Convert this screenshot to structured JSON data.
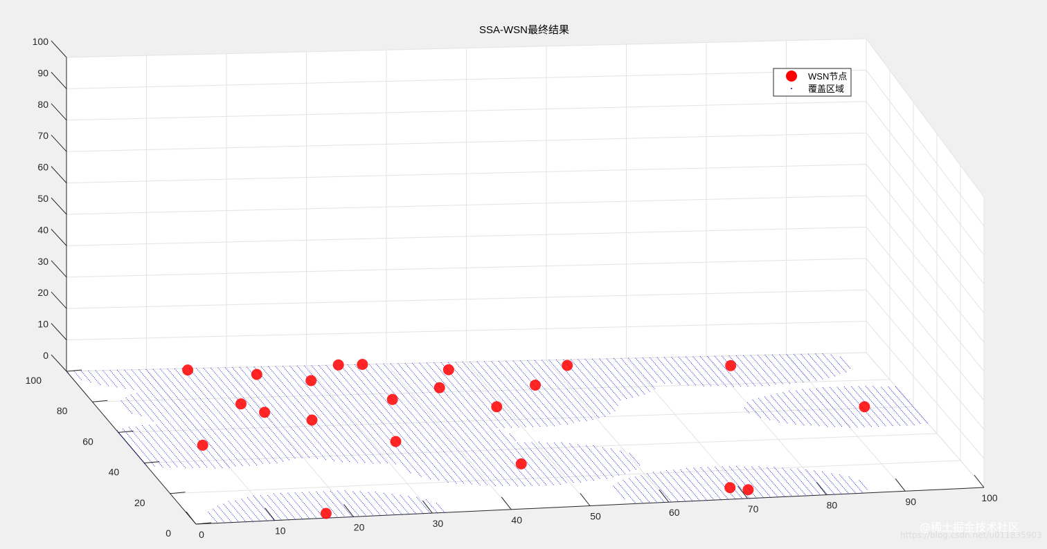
{
  "chart_data": {
    "type": "scatter",
    "title": "SSA-WSN最终结果",
    "xlabel": "",
    "ylabel": "",
    "zlabel": "",
    "xlim": [
      0,
      100
    ],
    "ylim": [
      0,
      100
    ],
    "zlim": [
      0,
      100
    ],
    "x_ticks": [
      "0",
      "10",
      "20",
      "30",
      "40",
      "50",
      "60",
      "70",
      "80",
      "90",
      "100"
    ],
    "y_ticks": [
      "0",
      "20",
      "40",
      "60",
      "80",
      "100"
    ],
    "z_ticks": [
      "0",
      "10",
      "20",
      "30",
      "40",
      "50",
      "60",
      "70",
      "80",
      "90",
      "100"
    ],
    "grid": true,
    "legend": {
      "position": "top-right",
      "entries": [
        "WSN节点",
        "覆盖区域"
      ]
    },
    "coverage_radius": 15,
    "series": [
      {
        "name": "WSN节点",
        "marker": "filled-circle",
        "color": "#ff0000",
        "points": [
          {
            "x": 17,
            "y": 3,
            "z": 0
          },
          {
            "x": 71,
            "y": 6,
            "z": 0
          },
          {
            "x": 69,
            "y": 8,
            "z": 0
          },
          {
            "x": 46,
            "y": 30,
            "z": 0
          },
          {
            "x": 9,
            "y": 50,
            "z": 0
          },
          {
            "x": 33,
            "y": 48,
            "z": 0
          },
          {
            "x": 25,
            "y": 64,
            "z": 0
          },
          {
            "x": 20,
            "y": 70,
            "z": 0
          },
          {
            "x": 18,
            "y": 76,
            "z": 0
          },
          {
            "x": 49,
            "y": 69,
            "z": 0
          },
          {
            "x": 94,
            "y": 61,
            "z": 0
          },
          {
            "x": 37,
            "y": 76,
            "z": 0
          },
          {
            "x": 44,
            "y": 83,
            "z": 0
          },
          {
            "x": 56,
            "y": 83,
            "z": 0
          },
          {
            "x": 82,
            "y": 93,
            "z": 0
          },
          {
            "x": 29,
            "y": 90,
            "z": 0
          },
          {
            "x": 47,
            "y": 95,
            "z": 0
          },
          {
            "x": 62,
            "y": 96,
            "z": 0
          },
          {
            "x": 37,
            "y": 100,
            "z": 0
          },
          {
            "x": 23,
            "y": 95,
            "z": 0
          },
          {
            "x": 15,
            "y": 99,
            "z": 0
          },
          {
            "x": 34,
            "y": 100,
            "z": 0
          }
        ]
      },
      {
        "name": "覆盖区域",
        "marker": "point",
        "color": "#0000cc",
        "description": "dense dots within coverage_radius of each node"
      }
    ]
  },
  "watermark": {
    "text": "@稀土掘金技术社区",
    "subtext": "https://blog.csdn.net/u011835903"
  }
}
